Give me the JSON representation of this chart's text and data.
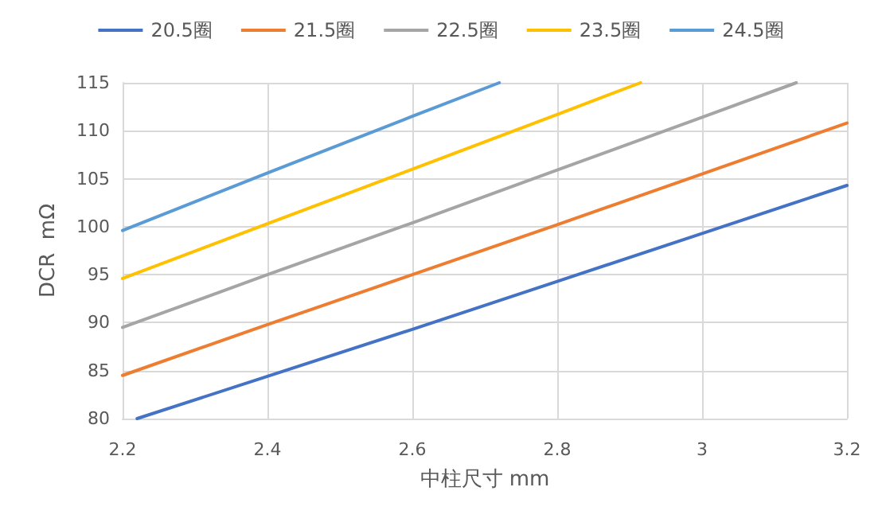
{
  "chart_data": {
    "type": "line",
    "xlabel": "中柱尺寸 mm",
    "ylabel": "DCR  mΩ",
    "xlim": [
      2.2,
      3.2
    ],
    "xticks": [
      2.2,
      2.4,
      2.6,
      2.8,
      3,
      3.2
    ],
    "ylim": [
      80,
      115
    ],
    "yticks": [
      80,
      85,
      90,
      95,
      100,
      105,
      110,
      115
    ],
    "grid": true,
    "legend": "top",
    "marker": "none",
    "line_style": "solid",
    "series": [
      {
        "name": "20.5圈",
        "color": "#4472c4",
        "x": [
          2.22,
          2.4,
          2.6,
          2.8,
          3,
          3.2
        ],
        "values": [
          80,
          84.4,
          89.3,
          94.3,
          99.3,
          104.3
        ]
      },
      {
        "name": "21.5圈",
        "color": "#ed7d31",
        "x": [
          2.2,
          2.4,
          2.6,
          2.8,
          3,
          3.2
        ],
        "values": [
          84.5,
          89.8,
          95,
          100.2,
          105.5,
          110.8
        ]
      },
      {
        "name": "22.5圈",
        "color": "#a5a5a5",
        "x": [
          2.2,
          2.4,
          2.6,
          2.8,
          3,
          3.13
        ],
        "values": [
          89.5,
          95,
          100.4,
          105.9,
          111.4,
          115
        ]
      },
      {
        "name": "23.5圈",
        "color": "#ffc000",
        "x": [
          2.2,
          2.4,
          2.6,
          2.8,
          2.915
        ],
        "values": [
          94.6,
          100.3,
          106,
          111.7,
          115
        ]
      },
      {
        "name": "24.5圈",
        "color": "#5b9bd5",
        "x": [
          2.2,
          2.4,
          2.6,
          2.72
        ],
        "values": [
          99.6,
          105.6,
          111.5,
          115
        ]
      }
    ]
  }
}
